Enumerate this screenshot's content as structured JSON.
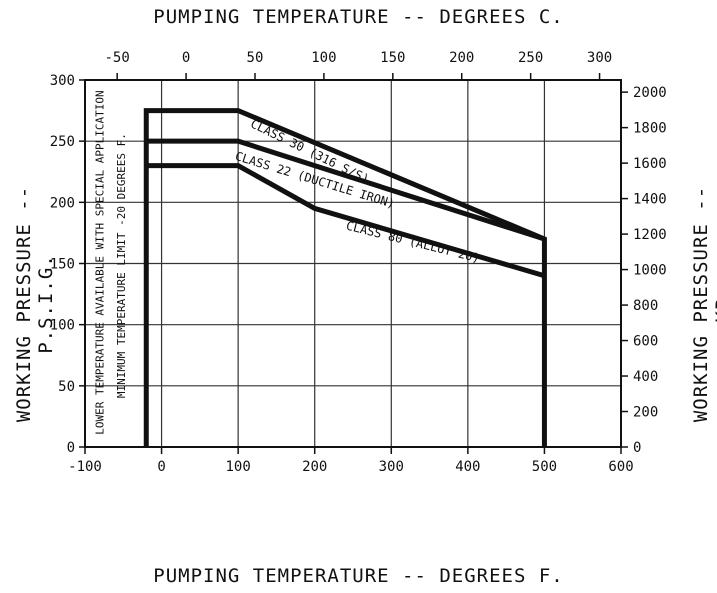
{
  "chart_data": {
    "type": "line",
    "title_top": "PUMPING TEMPERATURE -- DEGREES C.",
    "xlabel": "PUMPING TEMPERATURE -- DEGREES F.",
    "ylabel_left": "WORKING PRESSURE -- P.S.I.G.",
    "ylabel_right": "WORKING PRESSURE -- KPa",
    "x_bottom": {
      "range": [
        -100,
        600
      ],
      "ticks": [
        -100,
        0,
        100,
        200,
        300,
        400,
        500,
        600
      ],
      "tick_labels": [
        "-100",
        "0",
        "100",
        "200",
        "300",
        "400",
        "500",
        "600"
      ]
    },
    "x_top": {
      "range": [
        -73.3,
        315.6
      ],
      "ticks": [
        -50,
        0,
        50,
        100,
        150,
        200,
        250,
        300
      ],
      "tick_labels": [
        "-50",
        "0",
        "50",
        "100",
        "150",
        "200",
        "250",
        "300"
      ]
    },
    "y_left": {
      "range": [
        0,
        300
      ],
      "ticks": [
        0,
        50,
        100,
        150,
        200,
        250,
        300
      ],
      "tick_labels": [
        "0",
        "50",
        "100",
        "150",
        "200",
        "250",
        "300"
      ]
    },
    "y_right": {
      "range": [
        0,
        2068
      ],
      "ticks": [
        0,
        200,
        400,
        600,
        800,
        1000,
        1200,
        1400,
        1600,
        1800,
        2000
      ],
      "tick_labels": [
        "0",
        "200",
        "400",
        "600",
        "800",
        "1000",
        "1200",
        "1400",
        "1600",
        "1800",
        "2000"
      ]
    },
    "grid": true,
    "series": [
      {
        "name": "CLASS 30 (316 S/S)",
        "x": [
          -20,
          -20,
          100,
          500,
          500
        ],
        "y": [
          0,
          275,
          275,
          170,
          0
        ]
      },
      {
        "name": "CLASS 22 (DUCTILE IRON)",
        "x": [
          -20,
          100,
          500
        ],
        "y": [
          250,
          250,
          170
        ]
      },
      {
        "name": "CLASS 80 (ALLOY 20)",
        "x": [
          -20,
          100,
          200,
          500
        ],
        "y": [
          230,
          230,
          195,
          140
        ]
      }
    ],
    "annotations": [
      "LOWER TEMPERATURE AVAILABLE WITH SPECIAL APPLICATION",
      "MINIMUM TEMPERATURE LIMIT -20 DEGREES F."
    ]
  }
}
